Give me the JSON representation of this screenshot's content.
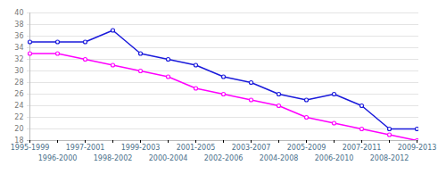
{
  "chart_data": {
    "type": "line",
    "categories": [
      "1995-1999",
      "1996-2000",
      "1997-2001",
      "1998-2002",
      "1999-2003",
      "2000-2004",
      "2001-2005",
      "2002-2006",
      "2003-2007",
      "2004-2008",
      "2005-2009",
      "2006-2010",
      "2007-2011",
      "2008-2012",
      "2009-2013"
    ],
    "series": [
      {
        "color": "#1a1adb",
        "values": [
          35,
          35,
          35,
          37,
          33,
          32,
          31,
          29,
          28,
          26,
          25,
          26,
          24,
          20,
          20
        ]
      },
      {
        "color": "#ff00ff",
        "values": [
          33,
          33,
          32,
          31,
          30,
          29,
          27,
          26,
          25,
          24,
          22,
          21,
          20,
          19,
          18
        ]
      }
    ],
    "ylim": [
      18,
      40
    ],
    "yticks": [
      18,
      20,
      22,
      24,
      26,
      28,
      30,
      32,
      34,
      36,
      38,
      40
    ],
    "grid": true,
    "marker": "circle"
  }
}
